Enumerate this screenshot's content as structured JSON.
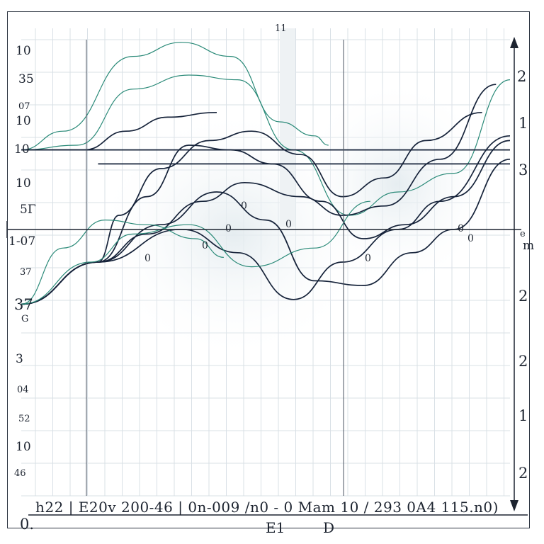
{
  "top_label": "11",
  "left_labels": [
    "10",
    "35",
    "07",
    "10",
    "10",
    "10",
    "5Γ",
    "1-07",
    "37",
    "37",
    "G",
    "3",
    "04",
    "52",
    "10",
    "46"
  ],
  "right_labels": [
    "2",
    "1",
    "3",
    "e",
    "m",
    "2",
    "2",
    "1",
    "2"
  ],
  "origin_label": "0.",
  "bottom_text": "h22 | E20v 200-46 | 0n-009 /n0 - 0 Mam 10 / 293 0A4 115.n0)",
  "x_captions": [
    "E1",
    "D"
  ],
  "point_markers": [
    "0",
    "0",
    "0",
    "0",
    "0",
    "0",
    "0",
    "0"
  ],
  "chart_data": {
    "type": "line",
    "title": "",
    "xlabel": "",
    "ylabel": "",
    "xlim": [
      0,
      700
    ],
    "ylim": [
      0,
      10
    ],
    "grid": true,
    "series": [
      {
        "color": "#2a8a78",
        "values": [
          [
            0,
            7.4
          ],
          [
            60,
            7.8
          ],
          [
            160,
            9.4
          ],
          [
            230,
            9.7
          ],
          [
            300,
            9.4
          ],
          [
            370,
            8.0
          ],
          [
            420,
            7.7
          ],
          [
            440,
            7.5
          ]
        ]
      },
      {
        "color": "#2a8a78",
        "values": [
          [
            0,
            7.4
          ],
          [
            80,
            7.5
          ],
          [
            160,
            8.7
          ],
          [
            240,
            9.0
          ],
          [
            310,
            8.9
          ],
          [
            390,
            7.4
          ],
          [
            470,
            6.0
          ],
          [
            540,
            6.5
          ],
          [
            620,
            6.9
          ],
          [
            700,
            8.9
          ]
        ]
      },
      {
        "color": "#16233a",
        "values": [
          [
            0,
            7.4
          ],
          [
            90,
            7.4
          ],
          [
            150,
            7.8
          ],
          [
            210,
            8.1
          ],
          [
            280,
            8.2
          ]
        ]
      },
      {
        "color": "#16233a",
        "values": [
          [
            0,
            4.1
          ],
          [
            110,
            5.0
          ],
          [
            180,
            5.6
          ],
          [
            260,
            6.3
          ],
          [
            320,
            6.7
          ],
          [
            400,
            6.4
          ],
          [
            460,
            6.0
          ],
          [
            520,
            6.2
          ],
          [
            600,
            7.2
          ],
          [
            680,
            8.8
          ]
        ]
      },
      {
        "color": "#16233a",
        "values": [
          [
            0,
            4.1
          ],
          [
            110,
            5.0
          ],
          [
            140,
            6.0
          ],
          [
            200,
            7.0
          ],
          [
            270,
            7.6
          ],
          [
            330,
            7.8
          ],
          [
            400,
            7.3
          ],
          [
            460,
            6.4
          ],
          [
            520,
            6.8
          ],
          [
            580,
            7.6
          ],
          [
            660,
            8.2
          ]
        ]
      },
      {
        "color": "#16233a",
        "values": [
          [
            0,
            4.1
          ],
          [
            110,
            5.0
          ],
          [
            180,
            6.4
          ],
          [
            240,
            7.5
          ],
          [
            300,
            7.4
          ],
          [
            360,
            7.1
          ],
          [
            430,
            6.3
          ],
          [
            490,
            5.5
          ],
          [
            550,
            5.8
          ],
          [
            620,
            6.4
          ],
          [
            700,
            7.6
          ]
        ]
      },
      {
        "color": "#16233a",
        "values": [
          [
            0,
            4.1
          ],
          [
            110,
            5.0
          ],
          [
            200,
            5.8
          ],
          [
            280,
            6.5
          ],
          [
            350,
            5.9
          ],
          [
            420,
            4.6
          ],
          [
            490,
            4.5
          ],
          [
            560,
            5.2
          ],
          [
            620,
            5.7
          ],
          [
            700,
            7.2
          ]
        ]
      },
      {
        "color": "#16233a",
        "values": [
          [
            0,
            4.1
          ],
          [
            110,
            5.0
          ],
          [
            230,
            5.7
          ],
          [
            310,
            5.2
          ],
          [
            390,
            4.2
          ],
          [
            460,
            5.0
          ],
          [
            540,
            5.7
          ],
          [
            600,
            6.3
          ],
          [
            700,
            7.7
          ]
        ]
      },
      {
        "color": "#2a8a78",
        "values": [
          [
            0,
            4.1
          ],
          [
            100,
            5.0
          ],
          [
            160,
            5.6
          ],
          [
            240,
            5.8
          ],
          [
            330,
            4.9
          ],
          [
            420,
            5.3
          ],
          [
            500,
            6.3
          ]
        ]
      },
      {
        "color": "#2a8a78",
        "values": [
          [
            0,
            4.1
          ],
          [
            60,
            5.3
          ],
          [
            120,
            5.9
          ],
          [
            180,
            5.8
          ],
          [
            250,
            5.5
          ],
          [
            290,
            5.1
          ]
        ]
      },
      {
        "color": "#16233a",
        "values": [
          [
            0,
            7.4
          ],
          [
            70,
            7.4
          ],
          [
            120,
            7.4
          ],
          [
            200,
            7.4
          ],
          [
            300,
            7.4
          ],
          [
            400,
            7.4
          ],
          [
            500,
            7.4
          ],
          [
            600,
            7.4
          ],
          [
            700,
            7.4
          ]
        ]
      },
      {
        "color": "#16233a",
        "values": [
          [
            110,
            7.1
          ],
          [
            200,
            7.1
          ],
          [
            300,
            7.1
          ],
          [
            400,
            7.1
          ],
          [
            500,
            7.1
          ],
          [
            600,
            7.1
          ],
          [
            700,
            7.1
          ]
        ]
      }
    ]
  }
}
